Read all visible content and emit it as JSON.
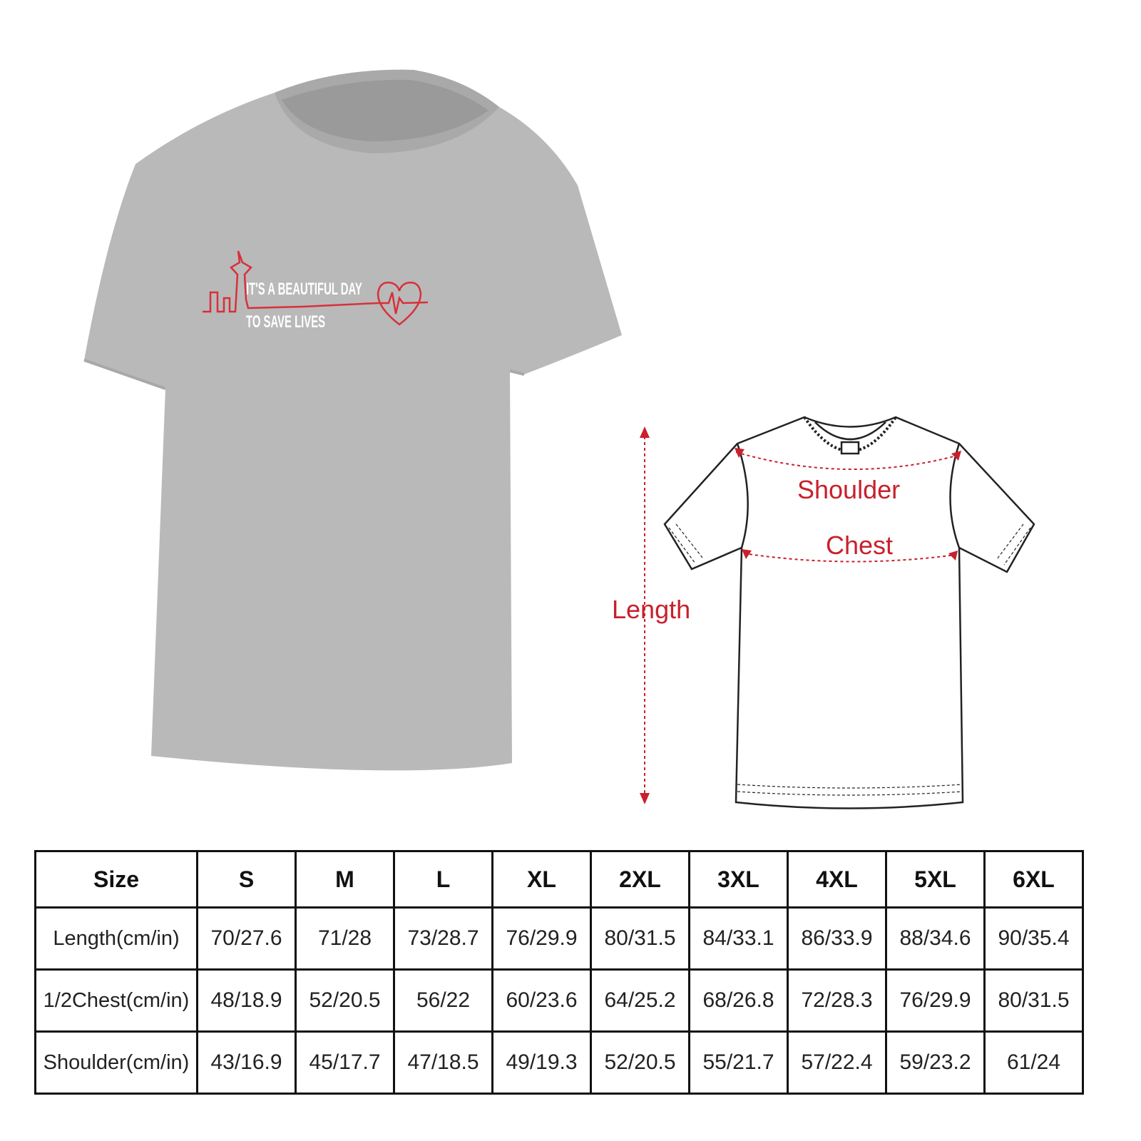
{
  "shirt_print": {
    "line1": "IT'S A BEAUTIFUL DAY",
    "line2": "TO SAVE LIVES"
  },
  "colors": {
    "shirt": "#b9b9b9",
    "accent": "#c8202c",
    "table_border": "#111111"
  },
  "diagram": {
    "shoulder_label": "Shoulder",
    "chest_label": "Chest",
    "length_label": "Length"
  },
  "size_table": {
    "header": [
      "Size",
      "S",
      "M",
      "L",
      "XL",
      "2XL",
      "3XL",
      "4XL",
      "5XL",
      "6XL"
    ],
    "rows": [
      [
        "Length(cm/in)",
        "70/27.6",
        "71/28",
        "73/28.7",
        "76/29.9",
        "80/31.5",
        "84/33.1",
        "86/33.9",
        "88/34.6",
        "90/35.4"
      ],
      [
        "1/2Chest(cm/in)",
        "48/18.9",
        "52/20.5",
        "56/22",
        "60/23.6",
        "64/25.2",
        "68/26.8",
        "72/28.3",
        "76/29.9",
        "80/31.5"
      ],
      [
        "Shoulder(cm/in)",
        "43/16.9",
        "45/17.7",
        "47/18.5",
        "49/19.3",
        "52/20.5",
        "55/21.7",
        "57/22.4",
        "59/23.2",
        "61/24"
      ]
    ]
  }
}
